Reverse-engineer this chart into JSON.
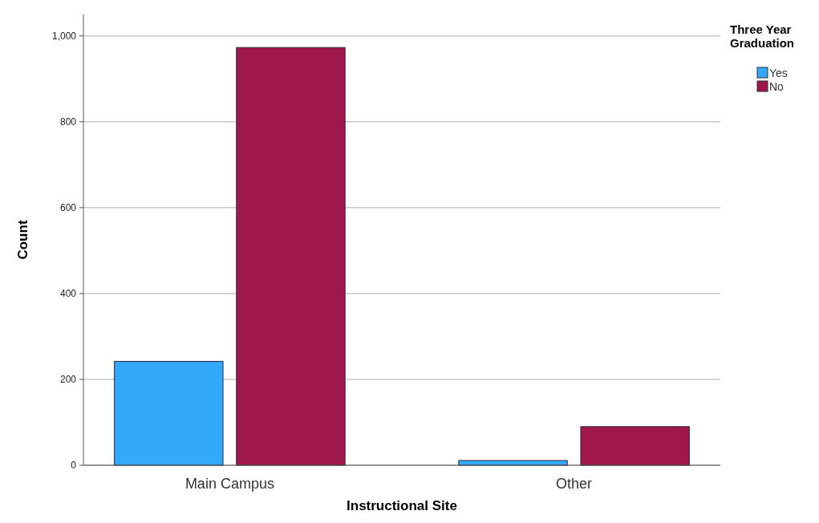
{
  "chart_data": {
    "type": "bar",
    "xlabel": "Instructional Site",
    "ylabel": "Count",
    "legend_title": "Three Year Graduation",
    "categories": [
      "Main Campus",
      "Other"
    ],
    "series": [
      {
        "name": "Yes",
        "color": "#33a9fc",
        "values": [
          242,
          11
        ]
      },
      {
        "name": "No",
        "color": "#a0174c",
        "values": [
          973,
          90
        ]
      }
    ],
    "ylim": [
      0,
      1050
    ],
    "yticks": [
      0,
      200,
      400,
      600,
      800,
      {
        "value": 1000,
        "label": "1,000"
      }
    ],
    "grid": "y",
    "legend": "top right"
  }
}
